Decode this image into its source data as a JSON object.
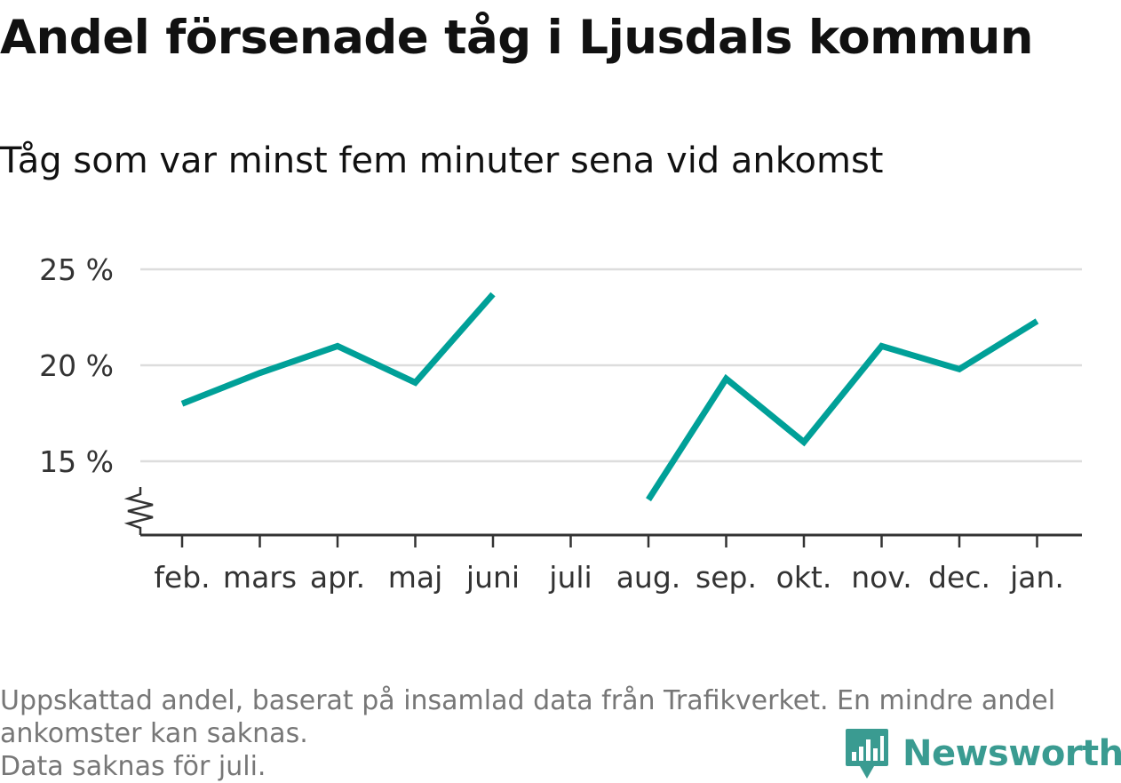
{
  "title": "Andel försenade tåg i Ljusdals kommun",
  "subtitle": "Tåg som var minst fem minuter sena vid ankomst",
  "footnote": {
    "line1": "Uppskattad andel, baserat på insamlad data från Trafikverket. En mindre andel",
    "line2": "ankomster kan saknas.",
    "line3": "Data saknas för juli."
  },
  "brand": {
    "name": "Newsworthy",
    "icon": "bar-chart-pin-icon",
    "color": "#3a9b91"
  },
  "chart_data": {
    "type": "line",
    "categories": [
      "feb.",
      "mars",
      "apr.",
      "maj",
      "juni",
      "juli",
      "aug.",
      "sep.",
      "okt.",
      "nov.",
      "dec.",
      "jan."
    ],
    "series": [
      {
        "values": [
          18.0,
          19.6,
          21.0,
          19.1,
          23.7,
          null,
          13.0,
          19.3,
          16.0,
          21.0,
          19.8,
          22.3
        ],
        "color": "#00a098"
      }
    ],
    "yticks": [
      15,
      20,
      25
    ],
    "ytick_labels": [
      "15 %",
      "20 %",
      "25 %"
    ],
    "ylim": [
      11.3,
      25
    ],
    "axis_break": true,
    "grid": true,
    "xlabel": "",
    "ylabel": ""
  }
}
